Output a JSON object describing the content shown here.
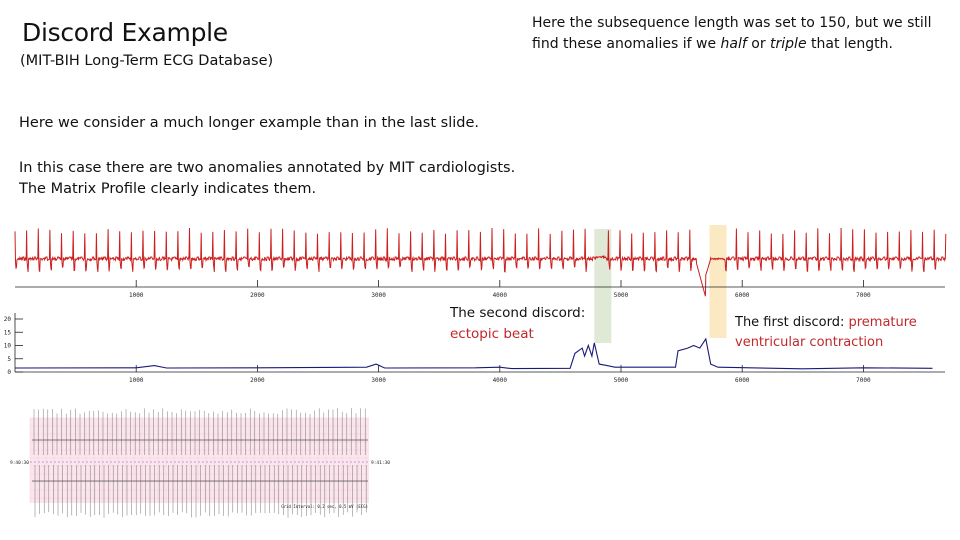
{
  "slide": {
    "title": "Discord Example",
    "subtitle": "(MIT-BIH Long-Term ECG Database)",
    "note_prefix": "Here the subsequence length was set to 150, but we still find these anomalies if we ",
    "note_half": "half",
    "note_or": " or ",
    "note_triple": "triple",
    "note_suffix": " that length.",
    "para1": "Here we consider a much longer example than in the last slide.",
    "para2_line1": "In this case there are two anomalies annotated by MIT cardiologists.",
    "para2_line2": "The Matrix Profile clearly indicates them."
  },
  "annotations": {
    "second_label": "The second discord:",
    "second_type": "ectopic beat",
    "first_label": "The first discord: ",
    "first_type_1": "premature",
    "first_type_2": "ventricular contraction",
    "colors": {
      "second_highlight": "#dfe9d6",
      "first_highlight": "#fbe9c4",
      "type_text": "#c0282b"
    }
  },
  "chart_data": [
    {
      "type": "line",
      "series_color": "#cc1f1f",
      "x_ticks": [
        "1000",
        "2000",
        "3000",
        "4000",
        "5000",
        "6000",
        "7000"
      ],
      "x_range": [
        0,
        7680
      ],
      "highlights": [
        [
          4780,
          4920
        ],
        [
          5730,
          5870
        ]
      ]
    },
    {
      "type": "line",
      "series_color": "#1a1a7a",
      "x_ticks": [
        "1000",
        "2000",
        "3000",
        "4000",
        "5000",
        "6000",
        "7000"
      ],
      "y_ticks": [
        "0",
        "5",
        "10",
        "15",
        "20"
      ],
      "y_range": [
        0,
        22
      ],
      "x_range": [
        0,
        7680
      ],
      "points": [
        [
          0,
          1.5
        ],
        [
          1000,
          1.6
        ],
        [
          1150,
          2.4
        ],
        [
          1250,
          1.5
        ],
        [
          2000,
          1.6
        ],
        [
          2900,
          1.8
        ],
        [
          2980,
          3
        ],
        [
          3050,
          1.5
        ],
        [
          3800,
          1.6
        ],
        [
          4000,
          1.8
        ],
        [
          4100,
          1.3
        ],
        [
          4580,
          1.4
        ],
        [
          4620,
          7
        ],
        [
          4680,
          9
        ],
        [
          4700,
          6
        ],
        [
          4730,
          10
        ],
        [
          4760,
          6
        ],
        [
          4780,
          11
        ],
        [
          4820,
          3
        ],
        [
          4880,
          2.5
        ],
        [
          4950,
          1.8
        ],
        [
          5450,
          1.8
        ],
        [
          5470,
          8
        ],
        [
          5550,
          9
        ],
        [
          5600,
          10
        ],
        [
          5650,
          9
        ],
        [
          5700,
          12.5
        ],
        [
          5740,
          3
        ],
        [
          5800,
          1.8
        ],
        [
          6500,
          1.2
        ],
        [
          7000,
          1.6
        ],
        [
          7570,
          1.4
        ]
      ]
    }
  ],
  "ecg_printout": {
    "left_label": "9:40:30",
    "right_label": "9:41:30",
    "footer": "Grid Interval: 0.2 sec, 0.5 mV (ECG)"
  }
}
